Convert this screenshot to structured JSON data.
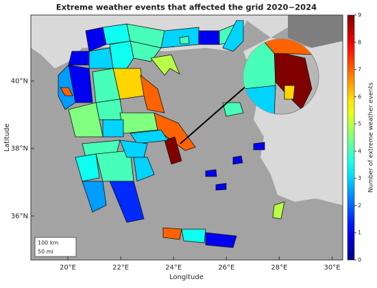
{
  "chart_data": {
    "type": "choropleth",
    "title": "Extreme weather events that affected the grid 2020−2024",
    "xlabel": "Longitude",
    "ylabel": "Latitude",
    "xlim": [
      18.6,
      30.4
    ],
    "xticks": [
      {
        "value": 20,
        "label": "20°E"
      },
      {
        "value": 22,
        "label": "22°E"
      },
      {
        "value": 24,
        "label": "24°E"
      },
      {
        "value": 26,
        "label": "26°E"
      },
      {
        "value": 28,
        "label": "28°E"
      },
      {
        "value": 30,
        "label": "30°E"
      }
    ],
    "ylim": [
      34.7,
      41.95
    ],
    "yticks": [
      {
        "value": 36,
        "label": "36°N"
      },
      {
        "value": 38,
        "label": "38°N"
      },
      {
        "value": 40,
        "label": "40°N"
      }
    ],
    "region_values": [
      1,
      3.5,
      4,
      3,
      1,
      4,
      3,
      4,
      5,
      1,
      3,
      3.5,
      1,
      2.5,
      6,
      4,
      7,
      4,
      4.5,
      4.5,
      3,
      7,
      9,
      3,
      4,
      3.5,
      4,
      3,
      2.5,
      1.5,
      3,
      7,
      4,
      7,
      3.5,
      1,
      5,
      1,
      1,
      4,
      1,
      1,
      4,
      9,
      7,
      6,
      3
    ],
    "colorbar": {
      "label": "Number of extreme weather events",
      "lim": [
        0,
        9
      ],
      "ticks": [
        0,
        1,
        2,
        3,
        4,
        5,
        6,
        7,
        8,
        9
      ],
      "colormap": "jet"
    },
    "scale_bar": [
      "100 km",
      "50 mi"
    ]
  }
}
